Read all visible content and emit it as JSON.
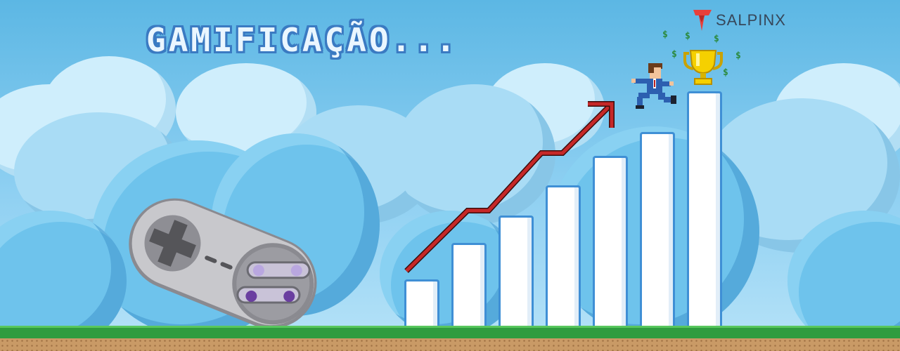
{
  "title": "GAMIFICAÇÃO...",
  "logo": {
    "text": "SALPINX",
    "icon": "salpinx-logo-icon",
    "color": "#e8403a"
  },
  "illustration": {
    "controller": "snes-gamepad-icon",
    "runner": "businessman-running-icon",
    "trophy": "trophy-icon",
    "coins": [
      "$",
      "$",
      "$",
      "$",
      "$",
      "$"
    ],
    "growth_bars": [
      1,
      2,
      3,
      4,
      5,
      6,
      7
    ],
    "trend_line_color": "#c62828",
    "colors": {
      "sky": "#6ec3ec",
      "grass": "#2f9c3f",
      "dirt": "#c99a66",
      "bar_outline": "#3f8fd5"
    }
  }
}
